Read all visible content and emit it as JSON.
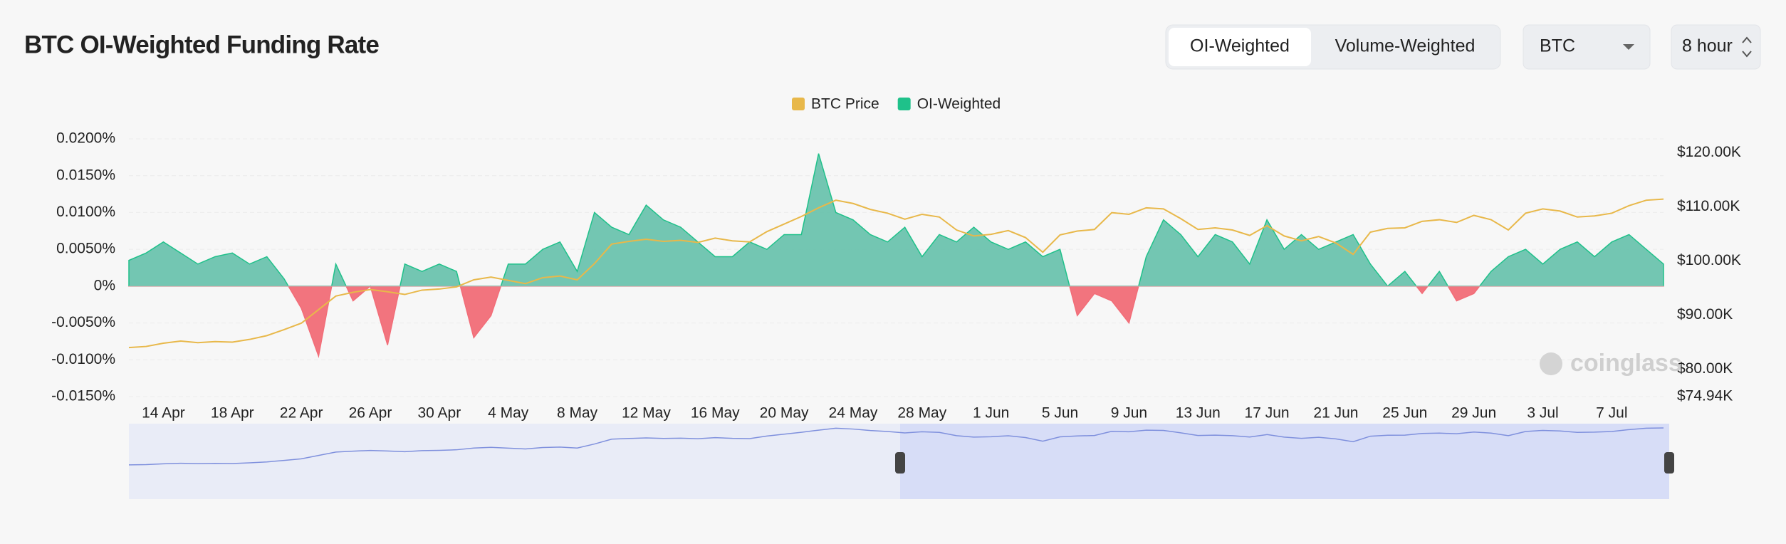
{
  "chart_data": {
    "type": "area-line",
    "title": "BTC OI-Weighted Funding Rate",
    "watermark": "coinglass",
    "categories": [
      null,
      null,
      "14 Apr",
      null,
      null,
      null,
      "18 Apr",
      null,
      null,
      null,
      "22 Apr",
      null,
      null,
      null,
      "26 Apr",
      null,
      null,
      null,
      "30 Apr",
      null,
      null,
      null,
      "4 May",
      null,
      null,
      null,
      "8 May",
      null,
      null,
      null,
      "12 May",
      null,
      null,
      null,
      "16 May",
      null,
      null,
      null,
      "20 May",
      null,
      null,
      null,
      "24 May",
      null,
      null,
      null,
      "28 May",
      null,
      null,
      null,
      "1 Jun",
      null,
      null,
      null,
      "5 Jun",
      null,
      null,
      null,
      "9 Jun",
      null,
      null,
      null,
      "13 Jun",
      null,
      null,
      null,
      "17 Jun",
      null,
      null,
      null,
      "21 Jun",
      null,
      null,
      null,
      "25 Jun",
      null,
      null,
      null,
      "29 Jun",
      null,
      null,
      null,
      "3 Jul",
      null,
      null,
      null,
      "7 Jul",
      null,
      null,
      null
    ],
    "series": [
      {
        "name": "BTC Price",
        "color": "#e8b84a",
        "axis": "y2",
        "values": [
          84000,
          84200,
          84800,
          85200,
          84900,
          85100,
          85000,
          85500,
          86200,
          87300,
          88500,
          91000,
          93500,
          94200,
          94700,
          94300,
          93800,
          94600,
          94800,
          95200,
          96500,
          97000,
          96400,
          95800,
          96900,
          97200,
          96500,
          99500,
          103100,
          103600,
          104000,
          103600,
          103800,
          103400,
          104200,
          103700,
          103500,
          105400,
          106800,
          108200,
          109800,
          111200,
          110600,
          109500,
          108800,
          107700,
          108600,
          108100,
          105700,
          104600,
          104900,
          105600,
          104300,
          101600,
          104800,
          105500,
          105800,
          108900,
          108600,
          109800,
          109600,
          107800,
          105800,
          106100,
          105700,
          104700,
          106500,
          104600,
          103700,
          104500,
          103300,
          101200,
          105300,
          106000,
          106100,
          107300,
          107600,
          107100,
          108400,
          107600,
          105700,
          108800,
          109600,
          109200,
          108100,
          108300,
          108800,
          110200,
          111200,
          111400
        ]
      },
      {
        "name": "OI-Weighted",
        "color": "#1fc18a",
        "fill": "#6cc3ae",
        "negative_color": "#f26d78",
        "values": [
          0.0035,
          0.0045,
          0.006,
          0.0045,
          0.003,
          0.004,
          0.0045,
          0.003,
          0.004,
          0.001,
          -0.003,
          -0.0095,
          0.003,
          -0.002,
          0.0,
          -0.008,
          0.003,
          0.002,
          0.003,
          0.002,
          -0.007,
          -0.004,
          0.003,
          0.003,
          0.005,
          0.006,
          0.002,
          0.01,
          0.008,
          0.007,
          0.011,
          0.009,
          0.008,
          0.006,
          0.004,
          0.004,
          0.006,
          0.005,
          0.007,
          0.007,
          0.018,
          0.01,
          0.009,
          0.007,
          0.006,
          0.008,
          0.004,
          0.007,
          0.006,
          0.008,
          0.006,
          0.005,
          0.006,
          0.004,
          0.005,
          -0.004,
          -0.001,
          -0.002,
          -0.005,
          0.004,
          0.009,
          0.007,
          0.004,
          0.007,
          0.006,
          0.003,
          0.009,
          0.005,
          0.007,
          0.005,
          0.006,
          0.007,
          0.003,
          0.0,
          0.002,
          -0.001,
          0.002,
          -0.002,
          -0.001,
          0.002,
          0.004,
          0.005,
          0.003,
          0.005,
          0.006,
          0.004,
          0.006,
          0.007,
          0.005,
          0.003
        ]
      }
    ],
    "ylim": [
      -0.015,
      0.02
    ],
    "yticks": [
      {
        "value": 0.02,
        "label": "0.0200%"
      },
      {
        "value": 0.015,
        "label": "0.0150%"
      },
      {
        "value": 0.01,
        "label": "0.0100%"
      },
      {
        "value": 0.005,
        "label": "0.0050%"
      },
      {
        "value": 0,
        "label": "0%"
      },
      {
        "value": -0.005,
        "label": "-0.0050%"
      },
      {
        "value": -0.01,
        "label": "-0.0100%"
      },
      {
        "value": -0.015,
        "label": "-0.0150%"
      }
    ],
    "y2lim": [
      74940,
      122530
    ],
    "y2ticks": [
      {
        "value": 120000,
        "label": "$120.00K"
      },
      {
        "value": 110000,
        "label": "$110.00K"
      },
      {
        "value": 100000,
        "label": "$100.00K"
      },
      {
        "value": 90000,
        "label": "$90.00K"
      },
      {
        "value": 80000,
        "label": "$80.00K"
      },
      {
        "value": 74940,
        "label": "$74.94K"
      }
    ],
    "grid": true,
    "legend": "top"
  },
  "controls": {
    "mode_options": [
      "OI-Weighted",
      "Volume-Weighted"
    ],
    "symbol": "BTC",
    "interval": "8 hour"
  }
}
